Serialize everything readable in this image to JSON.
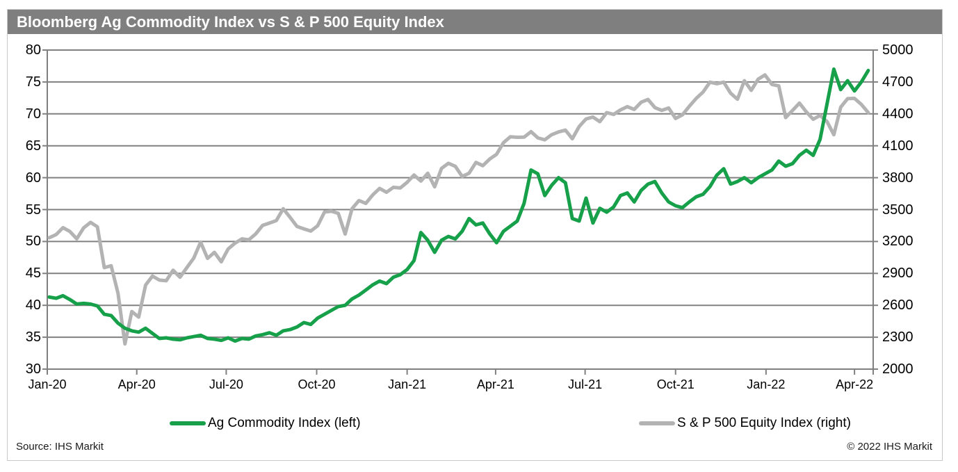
{
  "title": "Bloomberg Ag Commodity Index vs S & P 500 Equity Index",
  "footer": {
    "source": "Source: IHS Markit",
    "copyright": "© 2022 IHS Markit"
  },
  "legend": [
    {
      "label": "Ag Commodity Index (left)",
      "color": "#17A04A"
    },
    {
      "label": "S & P 500 Equity Index (right)",
      "color": "#B3B3B3"
    }
  ],
  "colors": {
    "title_bar": "#7f7f7f",
    "grid": "#808080",
    "ag_line": "#17A04A",
    "sp_line": "#B3B3B3"
  },
  "chart_data": {
    "type": "line",
    "title": "Bloomberg Ag Commodity Index vs S & P 500 Equity Index",
    "grid": true,
    "legend_position": "bottom",
    "x_start_date": "2020-01-03",
    "x_interval_days": 7,
    "x_axis_span_days": 840,
    "x_tick_labels": [
      "Jan-20",
      "Apr-20",
      "Jul-20",
      "Oct-20",
      "Jan-21",
      "Apr-21",
      "Jul-21",
      "Oct-21",
      "Jan-22",
      "Apr-22"
    ],
    "x_tick_days": [
      0,
      91,
      182,
      274,
      366,
      456,
      547,
      639,
      731,
      821
    ],
    "y_left": {
      "label": "Ag Commodity Index",
      "min": 30,
      "max": 80,
      "ticks": [
        80,
        75,
        70,
        65,
        60,
        55,
        50,
        45,
        40,
        35,
        30
      ]
    },
    "y_right": {
      "label": "S & P 500 Equity Index",
      "min": 2000,
      "max": 5000,
      "ticks": [
        5000,
        4700,
        4400,
        4100,
        3800,
        3500,
        3200,
        2900,
        2600,
        2300,
        2000
      ]
    },
    "series": [
      {
        "name": "Ag Commodity Index (left)",
        "axis": "left",
        "color": "#17A04A",
        "values": [
          41.3,
          41.1,
          41.5,
          40.9,
          40.2,
          40.3,
          40.2,
          39.9,
          38.6,
          38.4,
          37.2,
          36.4,
          36.0,
          35.8,
          36.4,
          35.6,
          34.8,
          34.9,
          34.7,
          34.6,
          34.9,
          35.1,
          35.3,
          34.8,
          34.7,
          34.5,
          34.9,
          34.4,
          34.8,
          34.7,
          35.2,
          35.4,
          35.7,
          35.3,
          36.0,
          36.2,
          36.6,
          37.3,
          37.0,
          38.0,
          38.6,
          39.2,
          39.8,
          40.0,
          41.0,
          41.6,
          42.4,
          43.2,
          43.8,
          43.4,
          44.4,
          44.8,
          45.6,
          47.0,
          51.4,
          50.2,
          48.3,
          50.2,
          50.8,
          50.4,
          51.6,
          53.6,
          52.6,
          52.9,
          51.2,
          49.8,
          51.6,
          52.4,
          53.2,
          56.0,
          61.2,
          60.6,
          57.2,
          58.8,
          60.0,
          59.2,
          53.6,
          53.2,
          56.8,
          52.9,
          55.2,
          54.6,
          55.4,
          57.2,
          57.6,
          56.2,
          58.0,
          59.0,
          59.4,
          57.6,
          56.2,
          55.6,
          55.3,
          56.2,
          57.0,
          57.4,
          58.6,
          60.4,
          61.4,
          59.0,
          59.4,
          60.0,
          59.2,
          60.0,
          60.6,
          61.2,
          62.6,
          61.8,
          62.2,
          63.5,
          64.3,
          63.5,
          66.0,
          71.5,
          77.0,
          73.8,
          75.2,
          73.6,
          75.0,
          76.8
        ]
      },
      {
        "name": "S & P 500 Equity Index (right)",
        "axis": "right",
        "color": "#B3B3B3",
        "values": [
          3235,
          3265,
          3330,
          3295,
          3225,
          3328,
          3380,
          3338,
          2954,
          2972,
          2711,
          2237,
          2541,
          2489,
          2790,
          2875,
          2837,
          2831,
          2930,
          2864,
          2955,
          3044,
          3194,
          3041,
          3098,
          3009,
          3130,
          3185,
          3225,
          3216,
          3271,
          3351,
          3373,
          3397,
          3508,
          3427,
          3341,
          3319,
          3298,
          3348,
          3477,
          3484,
          3465,
          3270,
          3509,
          3585,
          3558,
          3638,
          3699,
          3663,
          3709,
          3703,
          3756,
          3825,
          3768,
          3841,
          3714,
          3887,
          3935,
          3907,
          3811,
          3842,
          3943,
          3913,
          3975,
          4020,
          4129,
          4185,
          4180,
          4181,
          4233,
          4174,
          4156,
          4204,
          4230,
          4247,
          4166,
          4281,
          4352,
          4370,
          4327,
          4412,
          4395,
          4437,
          4468,
          4442,
          4509,
          4535,
          4459,
          4433,
          4455,
          4357,
          4391,
          4471,
          4545,
          4605,
          4698,
          4683,
          4698,
          4595,
          4538,
          4712,
          4621,
          4726,
          4766,
          4677,
          4663,
          4365,
          4432,
          4501,
          4419,
          4349,
          4385,
          4329,
          4204,
          4463,
          4543,
          4546,
          4488,
          4412
        ]
      }
    ]
  }
}
